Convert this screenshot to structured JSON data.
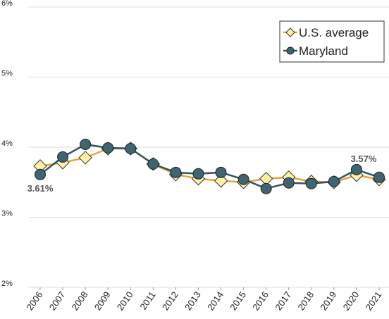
{
  "chart_data": {
    "type": "line",
    "categories": [
      "2006",
      "2007",
      "2008",
      "2009",
      "2010",
      "2011",
      "2012",
      "2013",
      "2014",
      "2015",
      "2016",
      "2017",
      "2018",
      "2019",
      "2020",
      "2021"
    ],
    "series": [
      {
        "name": "U.S. average",
        "color": "#e8a33a",
        "marker_color": "#fff0a8",
        "marker": "diamond",
        "values": [
          3.73,
          3.78,
          3.85,
          3.98,
          3.98,
          3.76,
          3.61,
          3.55,
          3.52,
          3.5,
          3.55,
          3.57,
          3.51,
          3.5,
          3.6,
          3.54
        ]
      },
      {
        "name": "Maryland",
        "color": "#2f5560",
        "marker_color": "#3e6571",
        "marker": "circle",
        "values": [
          3.61,
          3.86,
          4.04,
          3.99,
          3.98,
          3.76,
          3.64,
          3.62,
          3.64,
          3.54,
          3.41,
          3.49,
          3.48,
          3.51,
          3.68,
          3.57
        ],
        "value_labels": [
          "3.61%",
          null,
          null,
          null,
          null,
          null,
          null,
          null,
          null,
          null,
          null,
          null,
          null,
          null,
          null,
          "3.57%"
        ]
      }
    ],
    "ylim": [
      2,
      6
    ],
    "yticks": [
      {
        "value": 2,
        "label": "2%"
      },
      {
        "value": 3,
        "label": "3%"
      },
      {
        "value": 4,
        "label": "4%"
      },
      {
        "value": 5,
        "label": "5%"
      },
      {
        "value": 6,
        "label": "6%"
      }
    ],
    "grid": true,
    "legend": "top-right"
  }
}
